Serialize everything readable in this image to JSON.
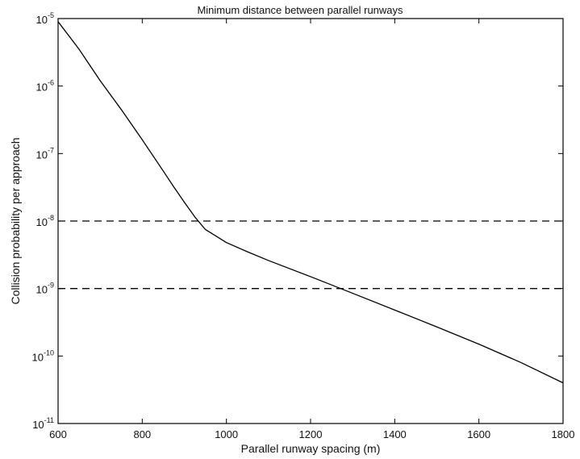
{
  "chart_data": {
    "type": "line",
    "title": "Minimum distance between parallel runways",
    "xlabel": "Parallel runway spacing (m)",
    "ylabel": "Collision probability per approach",
    "xlim": [
      600,
      1800
    ],
    "ylim": [
      1e-11,
      1e-05
    ],
    "yscale": "log",
    "grid": false,
    "x_ticks": [
      600,
      800,
      1000,
      1200,
      1400,
      1600,
      1800
    ],
    "x_tick_labels": [
      "600",
      "800",
      "1000",
      "1200",
      "1400",
      "1600",
      "1800"
    ],
    "y_ticks": [
      1e-11,
      1e-10,
      1e-09,
      1e-08,
      1e-07,
      1e-06,
      1e-05
    ],
    "y_tick_labels": [
      {
        "base": "10",
        "exp": "-11"
      },
      {
        "base": "10",
        "exp": "-10"
      },
      {
        "base": "10",
        "exp": "-9"
      },
      {
        "base": "10",
        "exp": "-8"
      },
      {
        "base": "10",
        "exp": "-7"
      },
      {
        "base": "10",
        "exp": "-6"
      },
      {
        "base": "10",
        "exp": "-5"
      }
    ],
    "series": [
      {
        "style": "solid",
        "color": "#000000",
        "x": [
          600,
          650,
          700,
          750,
          800,
          850,
          875,
          900,
          925,
          950,
          1000,
          1050,
          1100,
          1200,
          1300,
          1400,
          1500,
          1600,
          1700,
          1800
        ],
        "y": [
          9e-06,
          3.5e-06,
          1.2e-06,
          4.5e-07,
          1.6e-07,
          5.5e-08,
          3.2e-08,
          1.9e-08,
          1.15e-08,
          7.5e-09,
          4.8e-09,
          3.5e-09,
          2.6e-09,
          1.5e-09,
          8.5e-10,
          4.8e-10,
          2.7e-10,
          1.5e-10,
          8e-11,
          4e-11
        ]
      },
      {
        "style": "dashed",
        "color": "#000000",
        "x": [
          600,
          1800
        ],
        "y": [
          1e-08,
          1e-08
        ]
      },
      {
        "style": "dashed",
        "color": "#000000",
        "x": [
          600,
          1800
        ],
        "y": [
          1e-09,
          1e-09
        ]
      }
    ]
  }
}
